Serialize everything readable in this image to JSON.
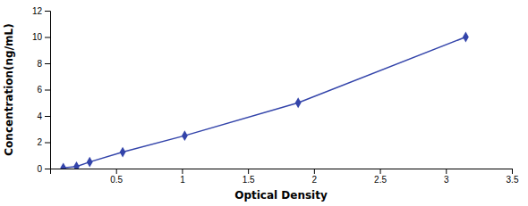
{
  "chart_data": {
    "type": "line",
    "xlabel": "Optical Density",
    "ylabel": "Concentration(ng/mL)",
    "x": [
      0.1,
      0.2,
      0.3,
      0.55,
      1.02,
      1.88,
      3.15
    ],
    "values": [
      0.05,
      0.15,
      0.5,
      1.25,
      2.5,
      5.0,
      10.0
    ],
    "color": "#3344aa",
    "marker": "diamond",
    "xlim": [
      0.0,
      3.5
    ],
    "ylim": [
      0,
      12
    ],
    "xticks": [
      0.5,
      1,
      1.5,
      2,
      2.5,
      3,
      3.5
    ],
    "yticks": [
      0,
      2,
      4,
      6,
      8,
      10,
      12
    ],
    "grid": false
  }
}
